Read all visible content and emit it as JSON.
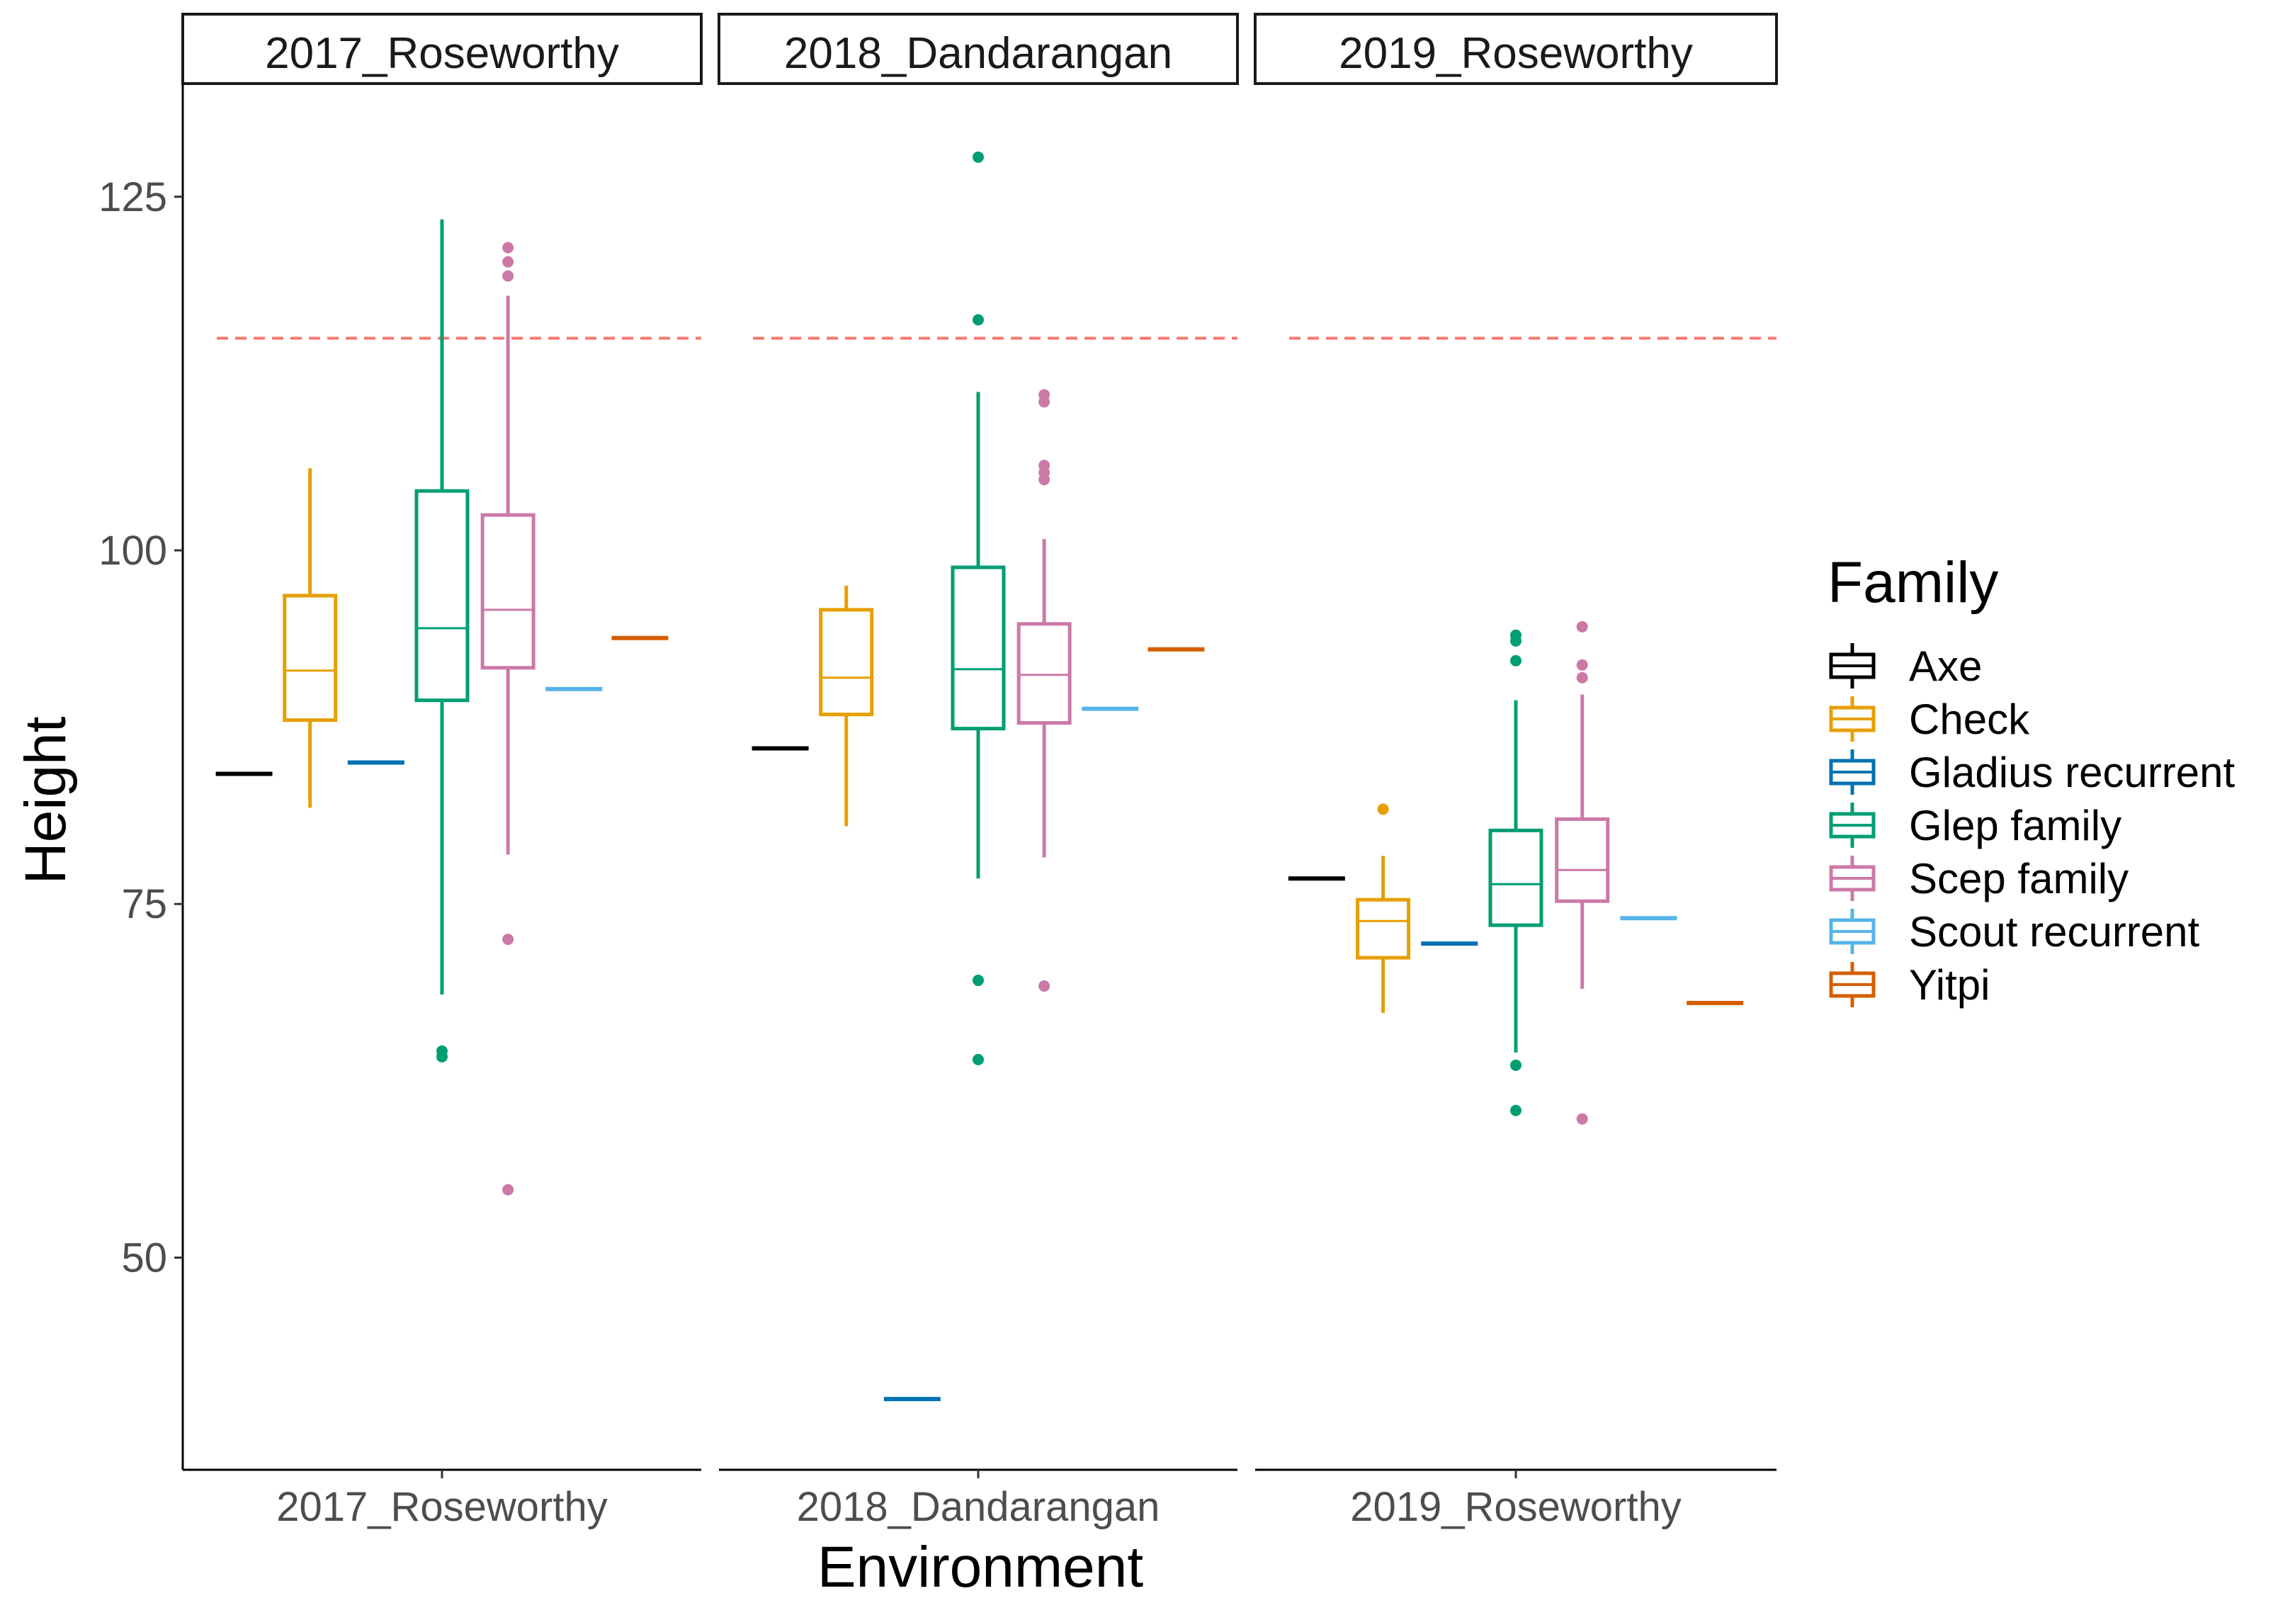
{
  "chart_data": {
    "type": "boxplot",
    "xlabel": "Environment",
    "ylabel": "Height",
    "ylim": [
      35,
      133
    ],
    "yticks": [
      50,
      75,
      100,
      125
    ],
    "reference_line": {
      "y": 115,
      "style": "dashed",
      "color": "#F8766D"
    },
    "facets": [
      "2017_Roseworthy",
      "2018_Dandarangan",
      "2019_Roseworthy"
    ],
    "legend": {
      "title": "Family",
      "entries": [
        "Axe",
        "Check",
        "Gladius recurrent",
        "Glep family",
        "Scep family",
        "Scout recurrent",
        "Yitpi"
      ]
    },
    "family_colors": {
      "Axe": "#000000",
      "Check": "#E69F00",
      "Gladius recurrent": "#0072B2",
      "Glep family": "#009E73",
      "Scep family": "#CC79A7",
      "Scout recurrent": "#56B4E9",
      "Yitpi": "#D55E00"
    },
    "series": [
      {
        "facet": 0,
        "family": "Axe",
        "single": 84.2
      },
      {
        "facet": 0,
        "family": "Check",
        "lower": 81.8,
        "q1": 88.0,
        "median": 91.5,
        "q3": 96.8,
        "upper": 105.8,
        "outliers": []
      },
      {
        "facet": 0,
        "family": "Gladius recurrent",
        "single": 85.0
      },
      {
        "facet": 0,
        "family": "Glep family",
        "lower": 68.6,
        "q1": 89.4,
        "median": 94.5,
        "q3": 104.2,
        "upper": 123.4,
        "outliers": [
          64.2,
          64.6
        ]
      },
      {
        "facet": 0,
        "family": "Scep family",
        "lower": 78.5,
        "q1": 91.7,
        "median": 95.8,
        "q3": 102.5,
        "upper": 118.0,
        "outliers": [
          121.4,
          120.4,
          119.4,
          72.5,
          54.8
        ]
      },
      {
        "facet": 0,
        "family": "Scout recurrent",
        "single": 90.2
      },
      {
        "facet": 0,
        "family": "Yitpi",
        "single": 93.8
      },
      {
        "facet": 1,
        "family": "Axe",
        "single": 86.0
      },
      {
        "facet": 1,
        "family": "Check",
        "lower": 80.5,
        "q1": 88.4,
        "median": 91.0,
        "q3": 95.8,
        "upper": 97.5,
        "outliers": []
      },
      {
        "facet": 1,
        "family": "Gladius recurrent",
        "single": 40.0
      },
      {
        "facet": 1,
        "family": "Glep family",
        "lower": 76.8,
        "q1": 87.4,
        "median": 91.6,
        "q3": 98.8,
        "upper": 111.2,
        "outliers": [
          127.8,
          116.3,
          69.6,
          64.0
        ]
      },
      {
        "facet": 1,
        "family": "Scep family",
        "lower": 78.3,
        "q1": 87.8,
        "median": 91.2,
        "q3": 94.8,
        "upper": 100.8,
        "outliers": [
          111.0,
          110.5,
          106.0,
          105.5,
          105.0,
          69.2
        ]
      },
      {
        "facet": 1,
        "family": "Scout recurrent",
        "single": 88.8
      },
      {
        "facet": 1,
        "family": "Yitpi",
        "single": 93.0
      },
      {
        "facet": 2,
        "family": "Axe",
        "single": 76.8
      },
      {
        "facet": 2,
        "family": "Check",
        "lower": 67.3,
        "q1": 71.2,
        "median": 73.8,
        "q3": 75.3,
        "upper": 78.4,
        "outliers": [
          81.7
        ]
      },
      {
        "facet": 2,
        "family": "Gladius recurrent",
        "single": 72.2
      },
      {
        "facet": 2,
        "family": "Glep family",
        "lower": 64.5,
        "q1": 73.5,
        "median": 76.4,
        "q3": 80.2,
        "upper": 89.4,
        "outliers": [
          94.0,
          93.6,
          92.2,
          63.6,
          60.4
        ]
      },
      {
        "facet": 2,
        "family": "Scep family",
        "lower": 69.0,
        "q1": 75.2,
        "median": 77.4,
        "q3": 81.0,
        "upper": 89.8,
        "outliers": [
          94.6,
          91.9,
          91.0,
          59.8
        ]
      },
      {
        "facet": 2,
        "family": "Scout recurrent",
        "single": 74.0
      },
      {
        "facet": 2,
        "family": "Yitpi",
        "single": 68.0
      }
    ]
  }
}
